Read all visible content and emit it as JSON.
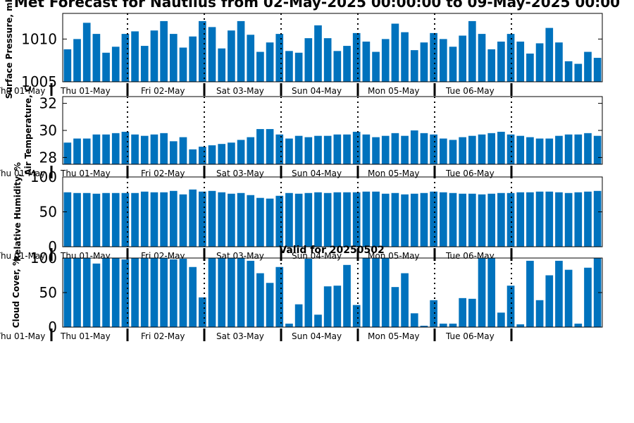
{
  "title": "Met Forecast for Nautilus from 02-May-2025 00:00:00 to 09-May-2025 00:00",
  "colors": {
    "bar": "#0072bd",
    "axis": "#000000",
    "separator": "#000000"
  },
  "chart_data": [
    {
      "type": "bar",
      "ylabel": "Surface Pressure, mb",
      "ylim": [
        1005,
        1013
      ],
      "yticks": [
        1005,
        1010
      ],
      "values": [
        1008.8,
        1010.0,
        1011.9,
        1010.6,
        1008.4,
        1009.1,
        1010.6,
        1010.9,
        1009.2,
        1011.0,
        1012.1,
        1010.6,
        1009.0,
        1010.3,
        1012.1,
        1011.4,
        1008.9,
        1011.0,
        1012.1,
        1010.5,
        1008.5,
        1009.6,
        1010.6,
        1008.6,
        1008.4,
        1010.1,
        1011.6,
        1010.1,
        1008.6,
        1009.2,
        1010.7,
        1009.7,
        1008.5,
        1010.0,
        1011.8,
        1010.8,
        1008.7,
        1009.6,
        1010.7,
        1010.0,
        1009.1,
        1010.4,
        1012.1,
        1010.6,
        1008.8,
        1009.7,
        1010.6,
        1009.7,
        1008.3,
        1009.5,
        1011.3,
        1009.6,
        1007.4,
        1007.1,
        1008.5,
        1007.8
      ]
    },
    {
      "type": "bar",
      "ylabel": "Air Temperature, C",
      "ylim": [
        27.5,
        32.5
      ],
      "yticks": [
        28,
        30,
        32
      ],
      "values": [
        29.1,
        29.4,
        29.4,
        29.7,
        29.7,
        29.8,
        29.9,
        29.7,
        29.6,
        29.7,
        29.8,
        29.2,
        29.5,
        28.6,
        28.8,
        28.9,
        29.0,
        29.1,
        29.3,
        29.5,
        30.1,
        30.1,
        29.7,
        29.4,
        29.6,
        29.5,
        29.6,
        29.6,
        29.7,
        29.7,
        29.9,
        29.7,
        29.5,
        29.6,
        29.8,
        29.6,
        30.0,
        29.8,
        29.7,
        29.4,
        29.3,
        29.5,
        29.6,
        29.7,
        29.8,
        29.9,
        29.7,
        29.6,
        29.5,
        29.4,
        29.4,
        29.6,
        29.7,
        29.7,
        29.8,
        29.6
      ]
    },
    {
      "type": "bar",
      "ylabel": "Relative Humidity, %",
      "ylim": [
        0,
        100
      ],
      "yticks": [
        0,
        50,
        100
      ],
      "values": [
        78,
        77,
        77,
        76,
        77,
        77,
        77,
        77,
        79,
        78,
        78,
        80,
        75,
        82,
        79,
        80,
        78,
        76,
        77,
        74,
        70,
        69,
        73,
        77,
        76,
        77,
        78,
        77,
        78,
        78,
        78,
        79,
        79,
        76,
        77,
        75,
        76,
        77,
        79,
        78,
        77,
        76,
        76,
        75,
        76,
        77,
        77,
        78,
        78,
        79,
        79,
        78,
        77,
        78,
        79,
        80
      ]
    },
    {
      "type": "bar",
      "subtitle": "Valid for 20250502",
      "ylabel": "Cloud Cover, %",
      "ylim": [
        0,
        100
      ],
      "yticks": [
        0,
        50,
        100
      ],
      "values": [
        100,
        100,
        100,
        92,
        100,
        100,
        98,
        100,
        100,
        100,
        100,
        98,
        99,
        87,
        43,
        100,
        100,
        100,
        100,
        96,
        78,
        64,
        87,
        5,
        33,
        99,
        18,
        59,
        60,
        90,
        32,
        100,
        100,
        100,
        58,
        78,
        20,
        2,
        39,
        5,
        5,
        42,
        41,
        100,
        100,
        21,
        60,
        4,
        96,
        39,
        75,
        96,
        83,
        5,
        86,
        100
      ]
    }
  ],
  "day_labels": [
    "Thu 01-May",
    "Fri 02-May",
    "Sat 03-May",
    "Sun 04-May",
    "Mon 05-May",
    "Tue 06-May"
  ],
  "edge_label": "Thu 01-May"
}
